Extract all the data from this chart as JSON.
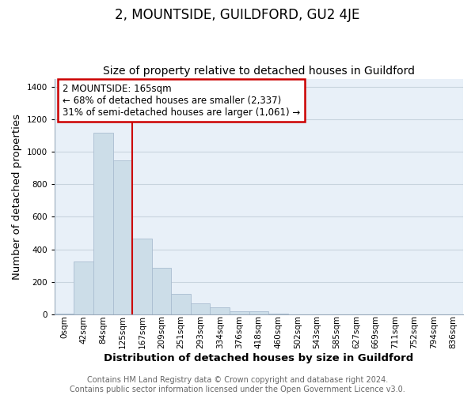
{
  "title": "2, MOUNTSIDE, GUILDFORD, GU2 4JE",
  "subtitle": "Size of property relative to detached houses in Guildford",
  "xlabel": "Distribution of detached houses by size in Guildford",
  "ylabel": "Number of detached properties",
  "footer_line1": "Contains HM Land Registry data © Crown copyright and database right 2024.",
  "footer_line2": "Contains public sector information licensed under the Open Government Licence v3.0.",
  "bar_labels": [
    "0sqm",
    "42sqm",
    "84sqm",
    "125sqm",
    "167sqm",
    "209sqm",
    "251sqm",
    "293sqm",
    "334sqm",
    "376sqm",
    "418sqm",
    "460sqm",
    "502sqm",
    "543sqm",
    "585sqm",
    "627sqm",
    "669sqm",
    "711sqm",
    "752sqm",
    "794sqm",
    "836sqm"
  ],
  "bar_values": [
    5,
    325,
    1115,
    945,
    465,
    285,
    125,
    70,
    45,
    18,
    20,
    5,
    0,
    0,
    0,
    0,
    0,
    2,
    0,
    0,
    0
  ],
  "bar_color": "#ccdde8",
  "bar_edge_color": "#aabdd0",
  "vline_x": 4,
  "vline_color": "#cc0000",
  "annotation_line1": "2 MOUNTSIDE: 165sqm",
  "annotation_line2": "← 68% of detached houses are smaller (2,337)",
  "annotation_line3": "31% of semi-detached houses are larger (1,061) →",
  "annotation_bbox_edgecolor": "#cc0000",
  "annotation_bbox_facecolor": "#ffffff",
  "ylim": [
    0,
    1450
  ],
  "yticks": [
    0,
    200,
    400,
    600,
    800,
    1000,
    1200,
    1400
  ],
  "grid_color": "#c8d4de",
  "background_color": "#e8f0f8",
  "plot_bg_color": "#e8f0f8",
  "title_fontsize": 12,
  "subtitle_fontsize": 10,
  "axis_label_fontsize": 9.5,
  "tick_fontsize": 7.5,
  "annotation_fontsize": 8.5,
  "footer_fontsize": 7
}
